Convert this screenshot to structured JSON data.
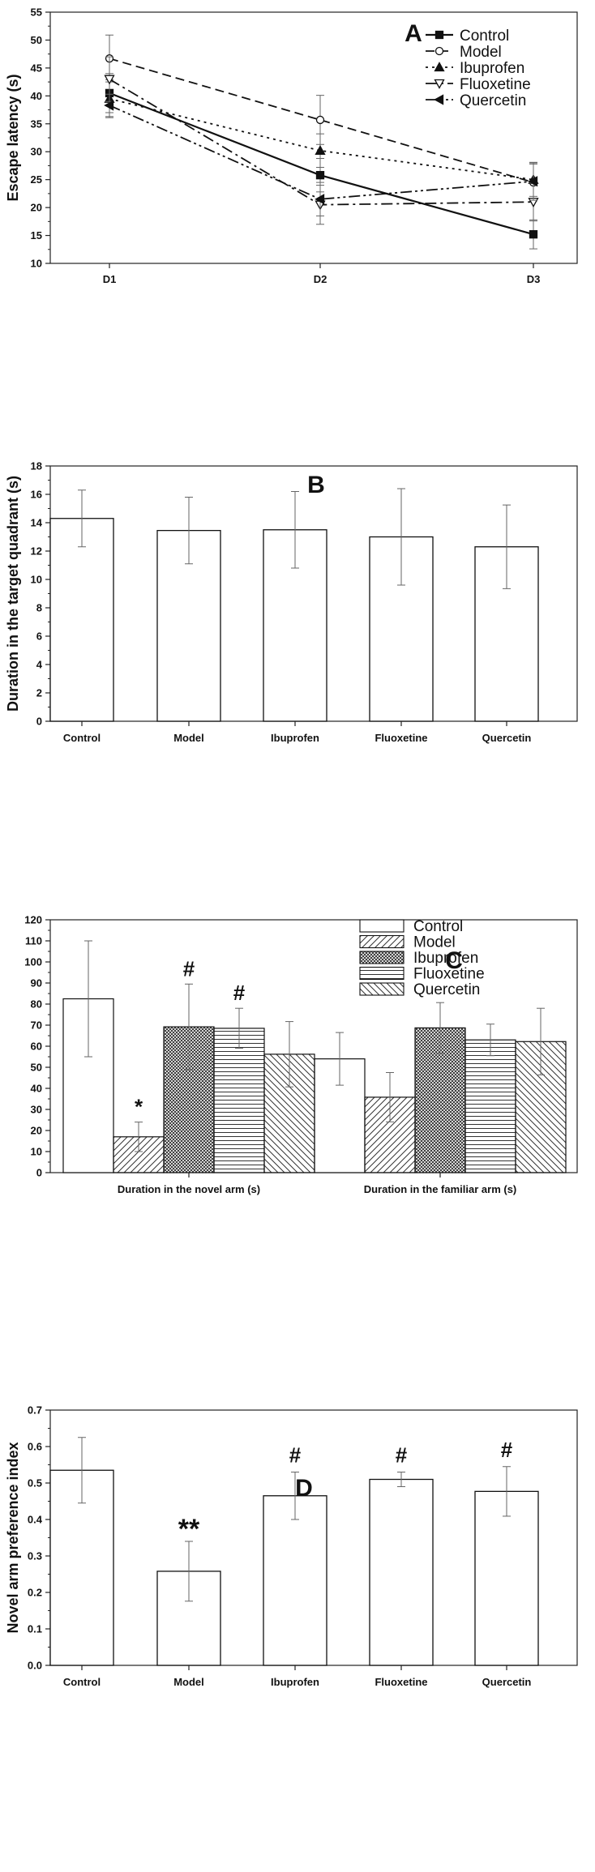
{
  "chart_data": [
    {
      "id": "A",
      "type": "line",
      "panel_label": "A",
      "ylabel": "Escape latency (s)",
      "ylim": [
        10,
        55
      ],
      "yticks": [
        10,
        15,
        20,
        25,
        30,
        35,
        40,
        45,
        50,
        55
      ],
      "categories": [
        "D1",
        "D2",
        "D3"
      ],
      "series": [
        {
          "name": "Control",
          "values": [
            40.5,
            25.8,
            15.2
          ],
          "errors": [
            3.5,
            3.0,
            2.6
          ],
          "marker": "square",
          "dash": ""
        },
        {
          "name": "Model",
          "values": [
            46.7,
            35.7,
            24.5
          ],
          "errors": [
            4.2,
            4.4,
            3.3
          ],
          "marker": "circle-open",
          "dash": "11,6"
        },
        {
          "name": "Ibuprofen",
          "values": [
            39.5,
            30.2,
            25.0
          ],
          "errors": [
            3.4,
            3.0,
            3.0
          ],
          "marker": "triangle",
          "dash": "3,5"
        },
        {
          "name": "Fluoxetine",
          "values": [
            43.0,
            20.5,
            21.0
          ],
          "errors": [
            4.0,
            3.5,
            3.4
          ],
          "marker": "triangle-down-open",
          "dash": "14,5,3,5"
        },
        {
          "name": "Quercetin",
          "values": [
            38.3,
            21.5,
            24.7
          ],
          "errors": [
            2.0,
            3.0,
            3.4
          ],
          "marker": "triangle-left",
          "dash": "14,4,3,4,3,4"
        }
      ]
    },
    {
      "id": "B",
      "type": "bar",
      "panel_label": "B",
      "ylabel": "Duration in the target quadrant (s)",
      "ylim": [
        0,
        18
      ],
      "yticks": [
        0,
        2,
        4,
        6,
        8,
        10,
        12,
        14,
        16,
        18
      ],
      "categories": [
        "Control",
        "Model",
        "Ibuprofen",
        "Fluoxetine",
        "Quercetin"
      ],
      "values": [
        14.3,
        13.45,
        13.5,
        13.0,
        12.3
      ],
      "errors": [
        2.0,
        2.35,
        2.7,
        3.4,
        2.95
      ]
    },
    {
      "id": "C",
      "type": "bar",
      "panel_label": "C",
      "ylabel": "",
      "ylim": [
        0,
        120
      ],
      "yticks": [
        0,
        10,
        20,
        30,
        40,
        50,
        60,
        70,
        80,
        90,
        100,
        110,
        120
      ],
      "categories": [
        "Duration in the novel arm (s)",
        "Duration in the familiar arm (s)"
      ],
      "series": [
        {
          "name": "Control",
          "pattern": "none",
          "values": [
            82.5,
            54.0
          ],
          "errors": [
            27.5,
            12.5
          ],
          "marks": [
            "",
            ""
          ]
        },
        {
          "name": "Model",
          "pattern": "diag",
          "values": [
            17.0,
            35.8
          ],
          "errors": [
            7.0,
            11.7
          ],
          "marks": [
            "*",
            ""
          ]
        },
        {
          "name": "Ibuprofen",
          "pattern": "cross",
          "values": [
            69.2,
            68.7
          ],
          "errors": [
            20.3,
            12.0
          ],
          "marks": [
            "#",
            ""
          ]
        },
        {
          "name": "Fluoxetine",
          "pattern": "hlines",
          "values": [
            68.5,
            63.0
          ],
          "errors": [
            9.5,
            7.5
          ],
          "marks": [
            "#",
            ""
          ]
        },
        {
          "name": "Quercetin",
          "pattern": "back",
          "values": [
            56.2,
            62.2
          ],
          "errors": [
            15.5,
            15.8
          ],
          "marks": [
            "",
            ""
          ]
        }
      ]
    },
    {
      "id": "D",
      "type": "bar",
      "panel_label": "D",
      "ylabel": "Novel arm preference index",
      "ylim": [
        0,
        0.7
      ],
      "yticks": [
        "0.0",
        "0.1",
        "0.2",
        "0.3",
        "0.4",
        "0.5",
        "0.6",
        "0.7"
      ],
      "categories": [
        "Control",
        "Model",
        "Ibuprofen",
        "Fluoxetine",
        "Quercetin"
      ],
      "values": [
        0.535,
        0.258,
        0.465,
        0.51,
        0.477
      ],
      "errors": [
        0.09,
        0.082,
        0.065,
        0.02,
        0.068
      ],
      "marks": [
        "",
        "**",
        "#",
        "#",
        "#"
      ]
    }
  ]
}
